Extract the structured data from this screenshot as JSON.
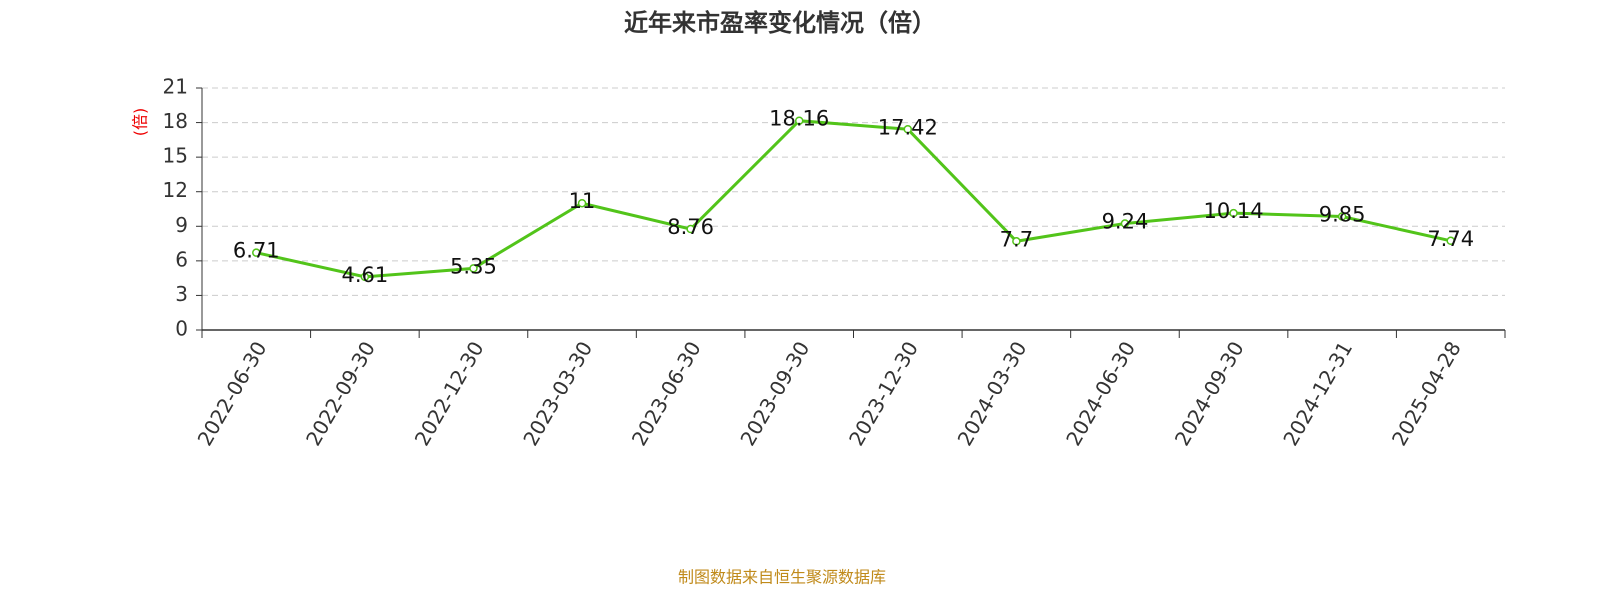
{
  "chart_data": {
    "type": "line",
    "title": "近年来市盈率变化情况（倍）",
    "y_label": "(倍)",
    "categories": [
      "2022-06-30",
      "2022-09-30",
      "2022-12-30",
      "2023-03-30",
      "2023-06-30",
      "2023-09-30",
      "2023-12-30",
      "2024-03-30",
      "2024-06-30",
      "2024-09-30",
      "2024-12-31",
      "2025-04-28"
    ],
    "values": [
      6.71,
      4.61,
      5.35,
      11,
      8.76,
      18.16,
      17.42,
      7.7,
      9.24,
      10.14,
      9.85,
      7.74
    ],
    "color": "#52c41a",
    "ylim": [
      0,
      21
    ],
    "yticks": [
      0,
      3,
      6,
      9,
      12,
      15,
      18,
      21
    ],
    "grid": true,
    "source": "制图数据来自恒生聚源数据库"
  }
}
